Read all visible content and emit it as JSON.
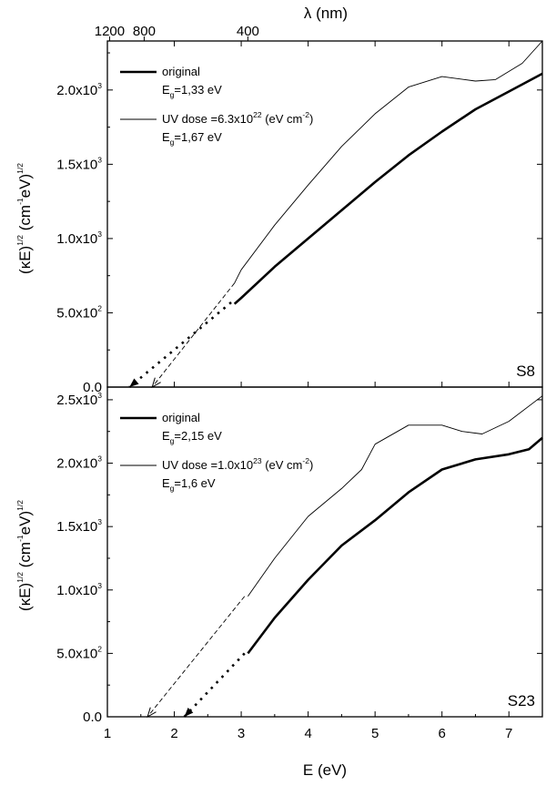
{
  "figure": {
    "top_axis": {
      "label": "λ (nm)",
      "ticks": [
        {
          "nm": 1200,
          "label": "1200"
        },
        {
          "nm": 800,
          "label": "800"
        },
        {
          "nm": 400,
          "label": "400"
        }
      ]
    },
    "x_axis": {
      "label": "E (eV)",
      "range": [
        1,
        7.5
      ],
      "ticks": [
        {
          "v": 1,
          "label": "1"
        },
        {
          "v": 2,
          "label": "2"
        },
        {
          "v": 3,
          "label": "3"
        },
        {
          "v": 4,
          "label": "4"
        },
        {
          "v": 5,
          "label": "5"
        },
        {
          "v": 6,
          "label": "6"
        },
        {
          "v": 7,
          "label": "7"
        }
      ]
    }
  },
  "chart_data": [
    {
      "type": "line",
      "panel_label": "S8",
      "ylabel": "(κE)^1/2 (cm^-1 eV)^1/2",
      "ylim": [
        0,
        2330
      ],
      "xlim": [
        1,
        7.5
      ],
      "yticks": [
        {
          "v": 0,
          "label": "0.0"
        },
        {
          "v": 500,
          "label": "5.0x10",
          "exp": "2"
        },
        {
          "v": 1000,
          "label": "1.0x10",
          "exp": "3"
        },
        {
          "v": 1500,
          "label": "1.5x10",
          "exp": "3"
        },
        {
          "v": 2000,
          "label": "2.0x10",
          "exp": "3"
        }
      ],
      "legend": [
        {
          "name": "original",
          "style": "thick",
          "param_label": "E",
          "param_sub": "g",
          "param_value": "=1,33   eV"
        },
        {
          "name": "UV dose =6.3x10",
          "name_exp": "22",
          "name_unit": " (eV cm",
          "name_unit_exp": "-2",
          "name_close": ")",
          "style": "thin",
          "param_label": "E",
          "param_sub": "g",
          "param_value": "=1,67   eV"
        }
      ],
      "series": [
        {
          "name": "original",
          "style": "thick",
          "x": [
            2.9,
            3.0,
            3.5,
            4.0,
            4.5,
            5.0,
            5.5,
            6.0,
            6.5,
            7.0,
            7.5
          ],
          "y": [
            560,
            600,
            810,
            1000,
            1190,
            1380,
            1560,
            1720,
            1870,
            1990,
            2110
          ],
          "extrapolation": {
            "x": [
              2.85,
              1.33
            ],
            "y": [
              570,
              0
            ]
          }
        },
        {
          "name": "UV dose",
          "style": "thin",
          "x": [
            2.9,
            3.0,
            3.5,
            4.0,
            4.5,
            5.0,
            5.5,
            6.0,
            6.5,
            6.8,
            7.2,
            7.5
          ],
          "y": [
            700,
            790,
            1090,
            1360,
            1620,
            1840,
            2020,
            2090,
            2060,
            2070,
            2180,
            2330
          ],
          "extrapolation": {
            "x": [
              2.9,
              1.67
            ],
            "y": [
              700,
              0
            ]
          }
        }
      ]
    },
    {
      "type": "line",
      "panel_label": "S23",
      "ylabel": "(κE)^1/2 (cm^-1 eV)^1/2",
      "ylim": [
        0,
        2600
      ],
      "xlim": [
        1,
        7.5
      ],
      "yticks": [
        {
          "v": 0,
          "label": "0.0"
        },
        {
          "v": 500,
          "label": "5.0x10",
          "exp": "2"
        },
        {
          "v": 1000,
          "label": "1.0x10",
          "exp": "3"
        },
        {
          "v": 1500,
          "label": "1.5x10",
          "exp": "3"
        },
        {
          "v": 2000,
          "label": "2.0x10",
          "exp": "3"
        },
        {
          "v": 2500,
          "label": "2.5x10",
          "exp": "3"
        }
      ],
      "legend": [
        {
          "name": "original",
          "style": "thick",
          "param_label": "E",
          "param_sub": "g",
          "param_value": "=2,15   eV"
        },
        {
          "name": "UV dose =1.0x10",
          "name_exp": "23",
          "name_unit": "  (eV cm",
          "name_unit_exp": "-2",
          "name_close": ")",
          "style": "thin",
          "param_label": "E",
          "param_sub": "g",
          "param_value": "=1,6   eV"
        }
      ],
      "series": [
        {
          "name": "original",
          "style": "thick",
          "x": [
            3.1,
            3.5,
            4.0,
            4.5,
            5.0,
            5.5,
            6.0,
            6.5,
            7.0,
            7.3,
            7.5
          ],
          "y": [
            500,
            780,
            1080,
            1350,
            1550,
            1770,
            1950,
            2030,
            2070,
            2110,
            2200
          ],
          "extrapolation": {
            "x": [
              3.05,
              2.15
            ],
            "y": [
              500,
              0
            ]
          }
        },
        {
          "name": "UV dose",
          "style": "thin",
          "x": [
            3.1,
            3.5,
            4.0,
            4.5,
            4.8,
            5.0,
            5.5,
            6.0,
            6.3,
            6.6,
            7.0,
            7.5
          ],
          "y": [
            950,
            1250,
            1580,
            1800,
            1950,
            2150,
            2300,
            2300,
            2250,
            2230,
            2330,
            2530
          ],
          "extrapolation": {
            "x": [
              3.05,
              1.6
            ],
            "y": [
              950,
              0
            ]
          }
        }
      ]
    }
  ]
}
